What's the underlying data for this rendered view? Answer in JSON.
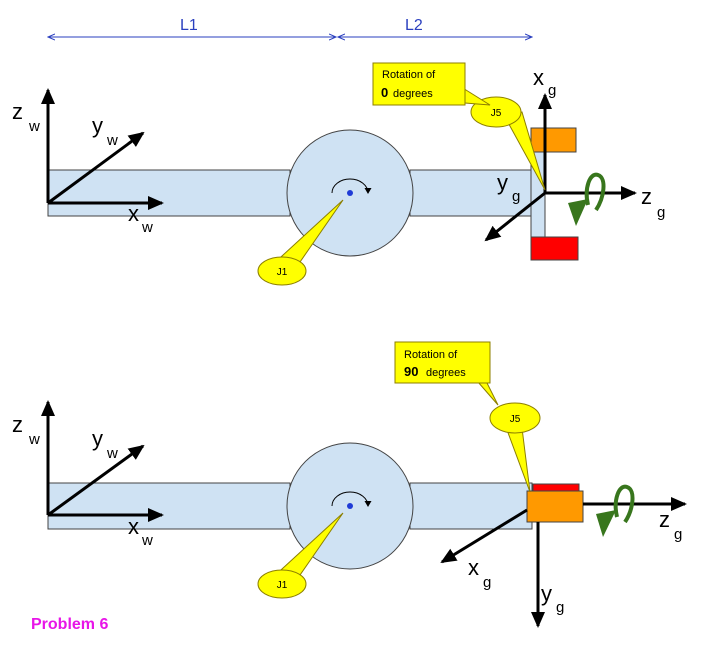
{
  "dimensions": {
    "l1": "L1",
    "l2": "L2"
  },
  "top_panel": {
    "world_frame": {
      "z": "z",
      "z_sub": "w",
      "y": "y",
      "y_sub": "w",
      "x": "x",
      "x_sub": "w"
    },
    "gripper_frame": {
      "x": "x",
      "x_sub": "g",
      "y": "y",
      "y_sub": "g",
      "z": "z",
      "z_sub": "g"
    },
    "rotation_note": {
      "line1": "Rotation of",
      "value": "0",
      "unit": "degrees"
    },
    "joint_j1": "J1",
    "joint_j5": "J5"
  },
  "bottom_panel": {
    "world_frame": {
      "z": "z",
      "z_sub": "w",
      "y": "y",
      "y_sub": "w",
      "x": "x",
      "x_sub": "w"
    },
    "gripper_frame": {
      "x": "x",
      "x_sub": "g",
      "y": "y",
      "y_sub": "g",
      "z": "z",
      "z_sub": "g"
    },
    "rotation_note": {
      "line1": "Rotation of",
      "value": "90",
      "unit": "degrees"
    },
    "joint_j1": "J1",
    "joint_j5": "J5"
  },
  "problem_label": "Problem 6",
  "colors": {
    "link_fill": "#cfe2f3",
    "link_stroke": "#434343",
    "dimension_blue": "#2a3fbf",
    "callout_yellow": "#ffff00",
    "callout_stroke": "#8c7f00",
    "gripper_orange": "#ff9900",
    "gripper_red": "#ff0000",
    "rotation_arrow": "#38761d",
    "problem_magenta": "#e815e8",
    "joint_dot": "#1f3bd6"
  },
  "icons": {
    "rotation_arrow": "curved-rotation-arrow-icon",
    "joint_rotation": "circular-rotation-arrow-icon"
  }
}
